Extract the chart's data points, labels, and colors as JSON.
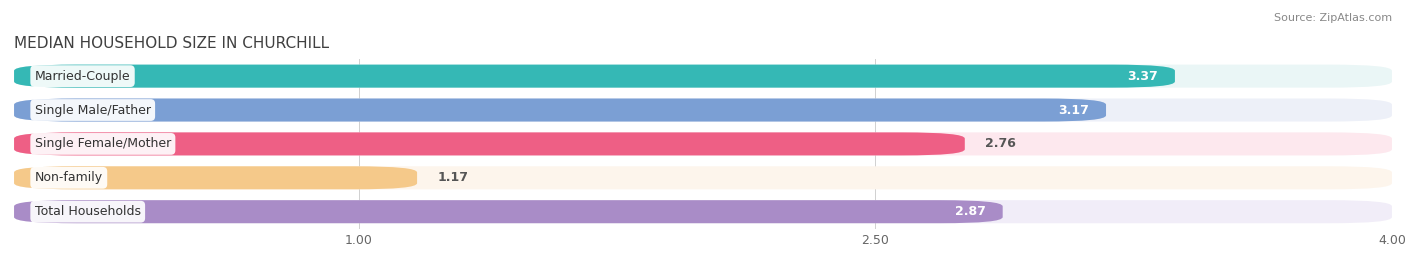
{
  "title": "MEDIAN HOUSEHOLD SIZE IN CHURCHILL",
  "source": "Source: ZipAtlas.com",
  "categories": [
    "Married-Couple",
    "Single Male/Father",
    "Single Female/Mother",
    "Non-family",
    "Total Households"
  ],
  "values": [
    3.37,
    3.17,
    2.76,
    1.17,
    2.87
  ],
  "bar_colors": [
    "#35b8b5",
    "#7b9fd4",
    "#ee5f85",
    "#f5c98a",
    "#a98cc7"
  ],
  "bar_bg_colors": [
    "#eaf6f6",
    "#edf0f8",
    "#fde8ee",
    "#fdf5ec",
    "#f1edf8"
  ],
  "xlim_data": [
    0.0,
    4.0
  ],
  "xticks": [
    1.0,
    2.5,
    4.0
  ],
  "value_inside": [
    true,
    true,
    false,
    false,
    true
  ],
  "title_fontsize": 11,
  "source_fontsize": 8,
  "label_fontsize": 9,
  "value_fontsize": 9,
  "tick_fontsize": 9
}
